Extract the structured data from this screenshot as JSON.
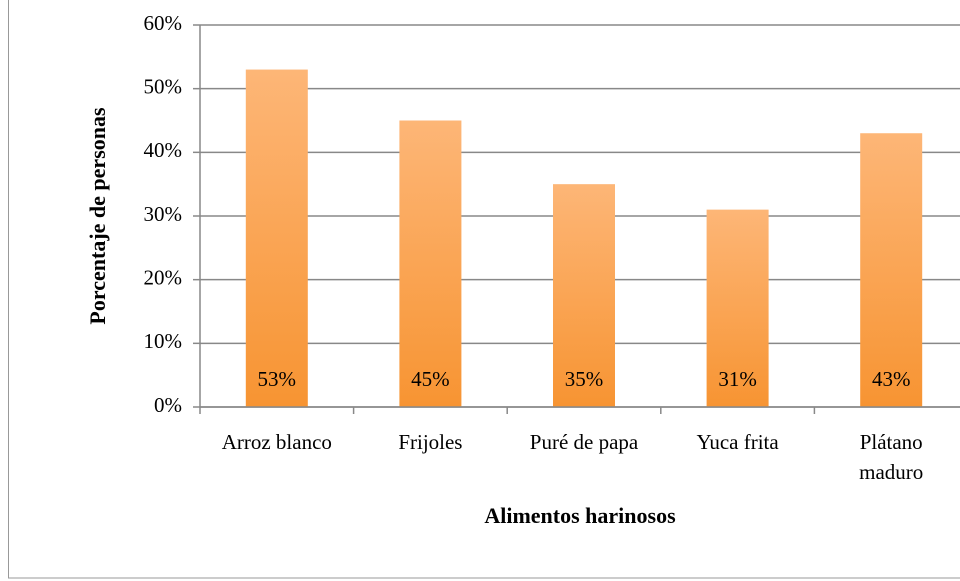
{
  "chart_data": {
    "type": "bar",
    "categories": [
      "Arroz blanco",
      "Frijoles",
      "Puré de papa",
      "Yuca frita",
      "Plátano maduro"
    ],
    "values": [
      53,
      45,
      35,
      31,
      43
    ],
    "value_labels": [
      "53%",
      "45%",
      "35%",
      "31%",
      "43%"
    ],
    "color": "#f79432",
    "xlabel": "Alimentos harinosos",
    "ylabel": "Porcentaje de personas",
    "ylim": [
      0,
      60
    ],
    "yticks": [
      {
        "value": 0,
        "label": "0%"
      },
      {
        "value": 10,
        "label": "10%"
      },
      {
        "value": 20,
        "label": "20%"
      },
      {
        "value": 30,
        "label": "30%"
      },
      {
        "value": 40,
        "label": "40%"
      },
      {
        "value": 50,
        "label": "50%"
      },
      {
        "value": 60,
        "label": "60%"
      }
    ],
    "grid": true
  }
}
